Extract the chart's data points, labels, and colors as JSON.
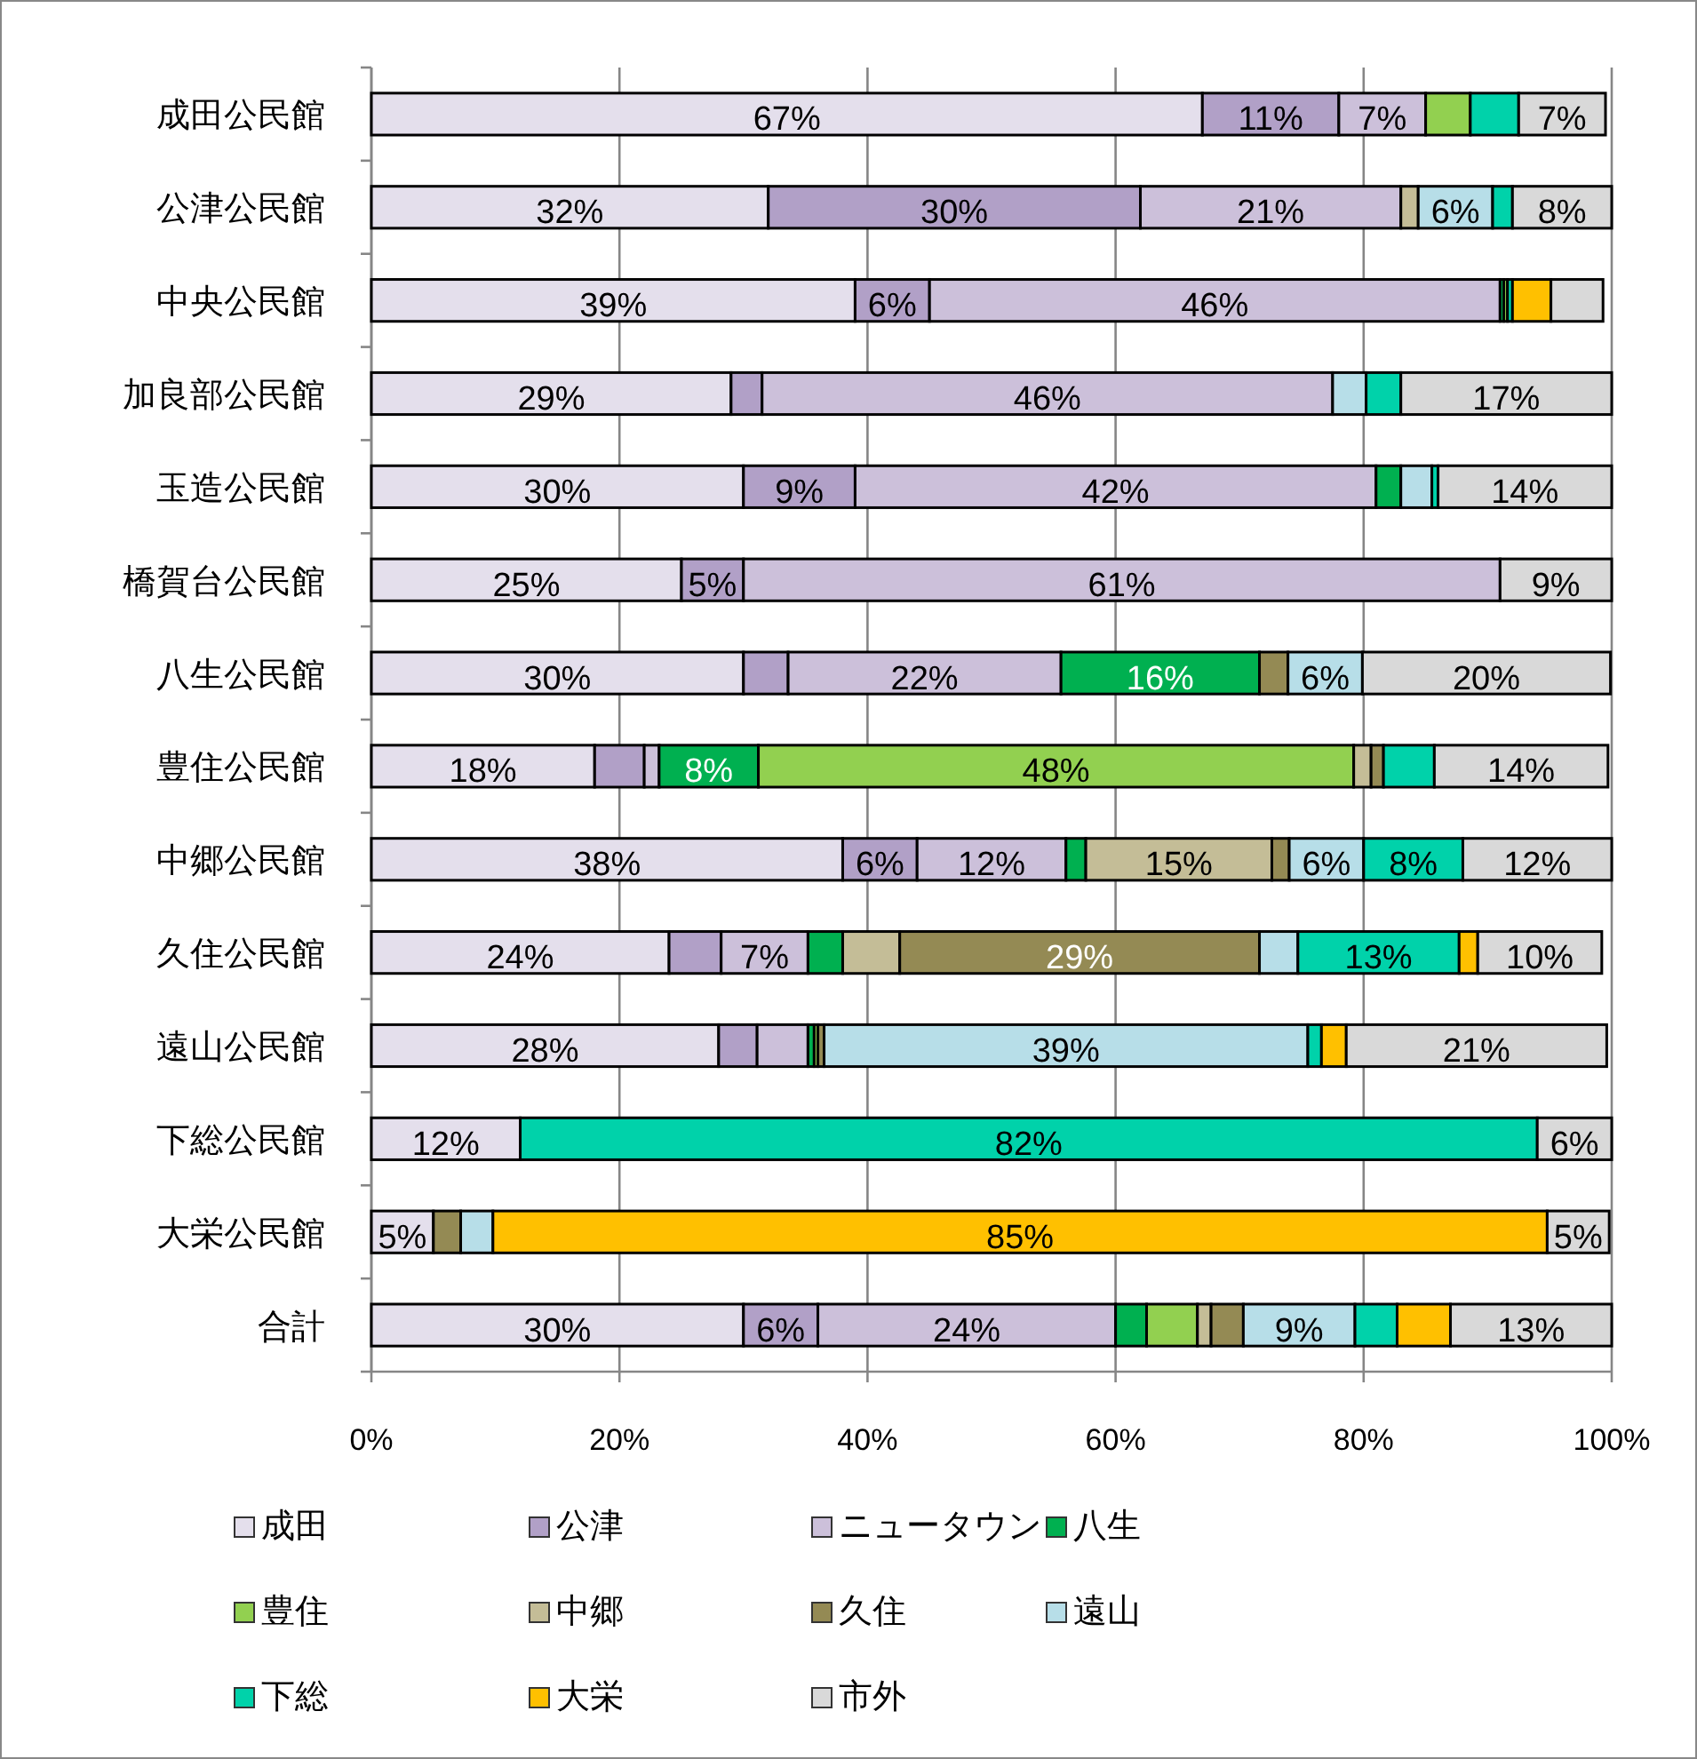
{
  "chart_data": {
    "type": "bar",
    "orientation": "horizontal",
    "stacked": true,
    "categories": [
      "成田公民館",
      "公津公民館",
      "中央公民館",
      "加良部公民館",
      "玉造公民館",
      "橋賀台公民館",
      "八生公民館",
      "豊住公民館",
      "中郷公民館",
      "久住公民館",
      "遠山公民館",
      "下総公民館",
      "大栄公民館",
      "合計"
    ],
    "series": [
      {
        "name": "成田",
        "color": "#e4dfec",
        "values": [
          67,
          32,
          39,
          29,
          30,
          25,
          30,
          18,
          38,
          24,
          28,
          12,
          5,
          30
        ],
        "value_labels": [
          "67%",
          "32%",
          "39%",
          "29%",
          "30%",
          "25%",
          "30%",
          "18%",
          "38%",
          "24%",
          "28%",
          "12%",
          "5%",
          "30%"
        ]
      },
      {
        "name": "公津",
        "color": "#b1a0c7",
        "values": [
          11,
          30,
          6,
          2.5,
          9,
          5,
          3.6,
          4,
          6,
          4.2,
          3.1,
          null,
          null,
          6
        ],
        "value_labels": [
          "11%",
          "30%",
          "6%",
          null,
          "9%",
          "5%",
          null,
          null,
          "6%",
          null,
          null,
          null,
          null,
          "6%"
        ]
      },
      {
        "name": "ニュータウン",
        "color": "#ccc0da",
        "values": [
          7,
          21,
          46,
          46,
          42,
          61,
          22,
          1.2,
          12,
          7,
          4.1,
          null,
          null,
          24
        ],
        "value_labels": [
          "7%",
          "21%",
          "46%",
          "46%",
          "42%",
          "61%",
          "22%",
          null,
          "12%",
          "7%",
          null,
          null,
          null,
          "24%"
        ]
      },
      {
        "name": "八生",
        "color": "#00b050",
        "values": [
          null,
          null,
          0.3,
          null,
          2,
          null,
          16,
          8,
          1.6,
          2.8,
          0.5,
          null,
          null,
          2.5
        ],
        "value_labels": [
          null,
          null,
          null,
          null,
          null,
          null,
          "16%",
          "8%",
          null,
          null,
          null,
          null,
          null,
          null
        ]
      },
      {
        "name": "豊住",
        "color": "#92d050",
        "values": [
          3.6,
          null,
          0.3,
          null,
          null,
          null,
          null,
          48,
          null,
          null,
          0.3,
          null,
          null,
          4.1
        ],
        "value_labels": [
          null,
          null,
          null,
          null,
          null,
          null,
          null,
          "48%",
          null,
          null,
          null,
          null,
          null,
          null
        ]
      },
      {
        "name": "中郷",
        "color": "#c4bd97",
        "values": [
          null,
          1.4,
          null,
          null,
          null,
          null,
          null,
          1.4,
          15,
          4.6,
          null,
          null,
          null,
          1.1
        ],
        "value_labels": [
          null,
          null,
          null,
          null,
          null,
          null,
          null,
          null,
          "15%",
          null,
          null,
          null,
          null,
          null
        ]
      },
      {
        "name": "久住",
        "color": "#948a54",
        "values": [
          null,
          null,
          null,
          null,
          null,
          null,
          2.3,
          1,
          1.4,
          29,
          0.5,
          null,
          2.2,
          2.6
        ],
        "value_labels": [
          null,
          null,
          null,
          null,
          null,
          null,
          null,
          null,
          null,
          "29%",
          null,
          null,
          null,
          null
        ]
      },
      {
        "name": "遠山",
        "color": "#b7dee8",
        "values": [
          null,
          6,
          null,
          2.7,
          2.5,
          null,
          6,
          null,
          6,
          3.1,
          39,
          null,
          2.6,
          9
        ],
        "value_labels": [
          null,
          "6%",
          null,
          null,
          null,
          null,
          "6%",
          null,
          "6%",
          null,
          "39%",
          null,
          null,
          "9%"
        ]
      },
      {
        "name": "下総",
        "color": "#00d2aa",
        "values": [
          3.9,
          1.6,
          0.4,
          2.8,
          0.5,
          null,
          null,
          4.1,
          8,
          13,
          1.1,
          82,
          null,
          3.4
        ],
        "value_labels": [
          null,
          null,
          null,
          null,
          null,
          null,
          null,
          null,
          "8%",
          "13%",
          null,
          "82%",
          null,
          null
        ]
      },
      {
        "name": "大栄",
        "color": "#ffc000",
        "values": [
          null,
          null,
          3.1,
          null,
          null,
          null,
          null,
          null,
          null,
          1.5,
          2,
          null,
          85,
          4.3
        ],
        "value_labels": [
          null,
          null,
          null,
          null,
          null,
          null,
          null,
          null,
          null,
          null,
          null,
          null,
          "85%",
          null
        ]
      },
      {
        "name": "市外",
        "color": "#d9d9d9",
        "values": [
          7,
          8,
          4.2,
          17,
          14,
          9,
          20,
          14,
          12,
          10,
          21,
          6,
          5,
          13
        ],
        "value_labels": [
          "7%",
          "8%",
          null,
          "17%",
          "14%",
          "9%",
          "20%",
          "14%",
          "12%",
          "10%",
          "21%",
          "6%",
          "5%",
          "13%"
        ]
      }
    ],
    "xlim": [
      0,
      100
    ],
    "xticks": [
      {
        "value": 0,
        "label": "0%"
      },
      {
        "value": 20,
        "label": "20%"
      },
      {
        "value": 40,
        "label": "40%"
      },
      {
        "value": 60,
        "label": "60%"
      },
      {
        "value": 80,
        "label": "80%"
      },
      {
        "value": 100,
        "label": "100%"
      }
    ],
    "grid": "x",
    "legend": "bottom"
  }
}
